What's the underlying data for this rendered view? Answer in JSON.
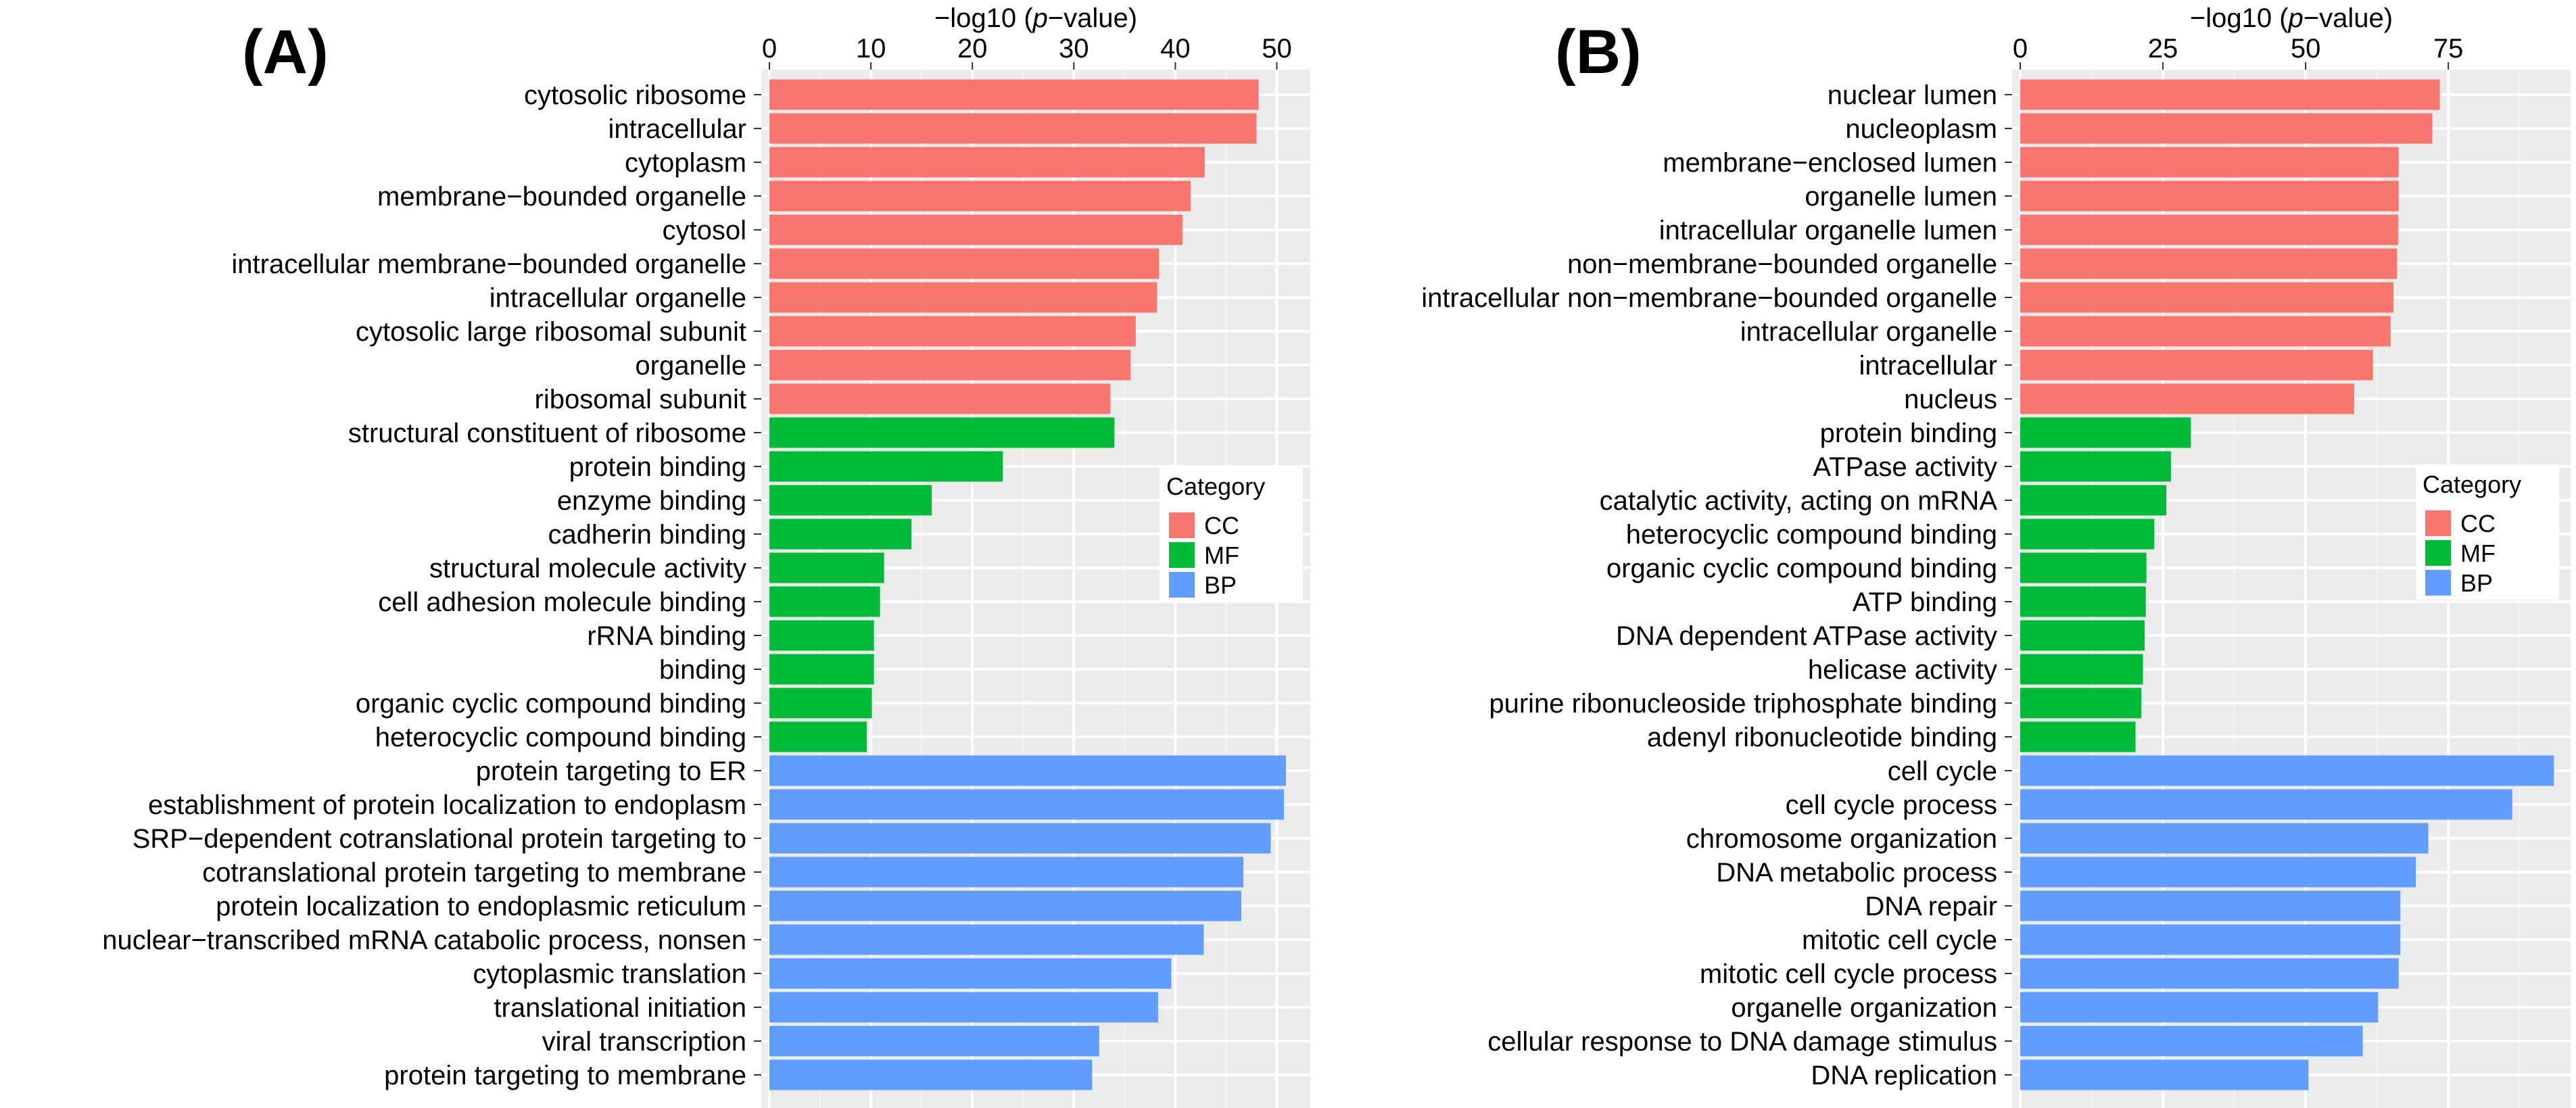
{
  "panels": [
    {
      "label": "(A)"
    },
    {
      "label": "(B)"
    }
  ],
  "chart_data": [
    {
      "type": "bar",
      "orientation": "horizontal",
      "panel_label": "(A)",
      "title": "",
      "xlabel_prefix": "−log10 (",
      "xlabel_italic": "p",
      "xlabel_suffix": "−value)",
      "xlim": [
        0,
        52.5
      ],
      "xticks": [
        0,
        10,
        20,
        30,
        40,
        50
      ],
      "grid": true,
      "legend": {
        "title": "Category",
        "position": "right-middle",
        "entries": [
          {
            "name": "CC",
            "color": "#F8766D"
          },
          {
            "name": "MF",
            "color": "#00BA38"
          },
          {
            "name": "BP",
            "color": "#619CFF"
          }
        ]
      },
      "categories": [
        "cytosolic ribosome",
        "intracellular",
        "cytoplasm",
        "membrane−bounded organelle",
        "cytosol",
        "intracellular membrane−bounded organelle",
        "intracellular organelle",
        "cytosolic large ribosomal subunit",
        "organelle",
        "ribosomal subunit",
        "structural constituent of ribosome",
        "protein binding",
        "enzyme binding",
        "cadherin binding",
        "structural molecule activity",
        "cell adhesion molecule binding",
        "rRNA binding",
        "binding",
        "organic cyclic compound binding",
        "heterocyclic compound binding",
        "protein targeting to ER",
        "establishment of protein localization to endoplasm",
        "SRP−dependent cotranslational protein targeting to",
        "cotranslational protein targeting to membrane",
        "protein localization to endoplasmic reticulum",
        "nuclear−transcribed mRNA catabolic process, nonsen",
        "cytoplasmic translation",
        "translational initiation",
        "viral transcription",
        "protein targeting to membrane"
      ],
      "values": [
        48.2,
        48.0,
        42.9,
        41.5,
        40.7,
        38.4,
        38.2,
        36.1,
        35.6,
        33.6,
        34.0,
        23.0,
        16.0,
        14.0,
        11.3,
        10.9,
        10.3,
        10.3,
        10.1,
        9.6,
        50.9,
        50.7,
        49.4,
        46.7,
        46.5,
        42.8,
        39.6,
        38.3,
        32.5,
        31.8
      ],
      "groups": [
        "CC",
        "CC",
        "CC",
        "CC",
        "CC",
        "CC",
        "CC",
        "CC",
        "CC",
        "CC",
        "MF",
        "MF",
        "MF",
        "MF",
        "MF",
        "MF",
        "MF",
        "MF",
        "MF",
        "MF",
        "BP",
        "BP",
        "BP",
        "BP",
        "BP",
        "BP",
        "BP",
        "BP",
        "BP",
        "BP"
      ]
    },
    {
      "type": "bar",
      "orientation": "horizontal",
      "panel_label": "(B)",
      "title": "",
      "xlabel_prefix": "−log10 (",
      "xlabel_italic": "p",
      "xlabel_suffix": "−value)",
      "xlim": [
        0,
        95
      ],
      "xticks": [
        0,
        25,
        50,
        75
      ],
      "grid": true,
      "legend": {
        "title": "Category",
        "position": "right-middle",
        "entries": [
          {
            "name": "CC",
            "color": "#F8766D"
          },
          {
            "name": "MF",
            "color": "#00BA38"
          },
          {
            "name": "BP",
            "color": "#619CFF"
          }
        ]
      },
      "categories": [
        "nuclear lumen",
        "nucleoplasm",
        "membrane−enclosed lumen",
        "organelle lumen",
        "intracellular organelle lumen",
        "non−membrane−bounded organelle",
        "intracellular non−membrane−bounded organelle",
        "intracellular organelle",
        "intracellular",
        "nucleus",
        "protein binding",
        "ATPase activity",
        "catalytic activity, acting on mRNA",
        "heterocyclic compound binding",
        "organic cyclic compound binding",
        "ATP binding",
        "DNA dependent ATPase activity",
        "helicase activity",
        "purine ribonucleoside triphosphate binding",
        "adenyl ribonucleotide binding",
        "cell cycle",
        "cell cycle process",
        "chromosome organization",
        "DNA metabolic process",
        "DNA repair",
        "mitotic cell cycle",
        "mitotic cell cycle process",
        "organelle organization",
        "cellular response to DNA damage stimulus",
        "DNA replication"
      ],
      "values": [
        73.5,
        72.2,
        66.3,
        66.3,
        66.2,
        66.0,
        65.4,
        64.9,
        61.8,
        58.5,
        29.9,
        26.4,
        25.6,
        23.5,
        22.1,
        22.0,
        21.8,
        21.5,
        21.2,
        20.2,
        93.5,
        86.2,
        71.5,
        69.3,
        66.6,
        66.6,
        66.3,
        62.7,
        60.0,
        50.5
      ],
      "groups": [
        "CC",
        "CC",
        "CC",
        "CC",
        "CC",
        "CC",
        "CC",
        "CC",
        "CC",
        "CC",
        "MF",
        "MF",
        "MF",
        "MF",
        "MF",
        "MF",
        "MF",
        "MF",
        "MF",
        "MF",
        "BP",
        "BP",
        "BP",
        "BP",
        "BP",
        "BP",
        "BP",
        "BP",
        "BP",
        "BP"
      ]
    }
  ]
}
